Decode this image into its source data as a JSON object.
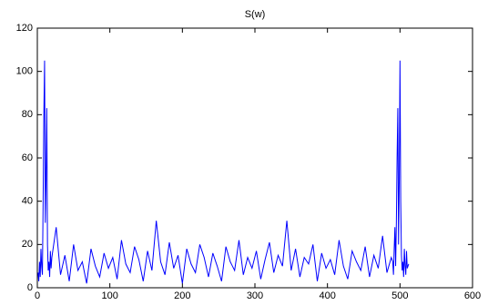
{
  "chart_data": {
    "type": "line",
    "title": "S(w)",
    "x": [
      1,
      2,
      3,
      4,
      5,
      6,
      7,
      8,
      9,
      10,
      11,
      12,
      13,
      14,
      15,
      16,
      17,
      18,
      19,
      20,
      26,
      32,
      38,
      44,
      50,
      56,
      62,
      68,
      74,
      80,
      86,
      92,
      98,
      104,
      110,
      116,
      122,
      128,
      134,
      140,
      146,
      152,
      158,
      164,
      170,
      176,
      182,
      188,
      194,
      200,
      206,
      212,
      218,
      224,
      230,
      236,
      242,
      248,
      254,
      260,
      266,
      272,
      278,
      284,
      290,
      296,
      302,
      308,
      314,
      320,
      326,
      332,
      338,
      344,
      350,
      356,
      362,
      368,
      374,
      380,
      386,
      392,
      398,
      404,
      410,
      416,
      422,
      428,
      434,
      440,
      446,
      452,
      458,
      464,
      470,
      476,
      482,
      488,
      490,
      491,
      492,
      493,
      494,
      495,
      496,
      497,
      498,
      499,
      500,
      501,
      502,
      503,
      504,
      505,
      506,
      507,
      508,
      509,
      510,
      511,
      512
    ],
    "series": [
      {
        "name": "S(w)",
        "color": "#0000ff",
        "values": [
          7,
          3,
          12,
          5,
          18,
          10,
          6,
          40,
          80,
          105,
          30,
          50,
          83,
          20,
          8,
          12,
          5,
          17,
          9,
          14,
          28,
          6,
          15,
          3,
          20,
          8,
          12,
          2,
          18,
          10,
          5,
          16,
          9,
          14,
          4,
          22,
          11,
          7,
          19,
          13,
          3,
          17,
          8,
          31,
          12,
          6,
          21,
          9,
          15,
          2,
          18,
          11,
          7,
          20,
          14,
          5,
          16,
          10,
          3,
          19,
          12,
          8,
          22,
          6,
          14,
          9,
          17,
          4,
          13,
          21,
          7,
          15,
          10,
          31,
          8,
          18,
          5,
          14,
          11,
          20,
          3,
          16,
          9,
          13,
          6,
          22,
          10,
          4,
          17,
          12,
          8,
          19,
          5,
          15,
          9,
          24,
          7,
          14,
          12,
          6,
          18,
          28,
          10,
          30,
          60,
          83,
          20,
          50,
          105,
          40,
          15,
          8,
          12,
          5,
          18,
          10,
          6,
          17,
          9,
          10,
          11
        ]
      }
    ],
    "xlim": [
      0,
      600
    ],
    "xticks": [
      0,
      100,
      200,
      300,
      400,
      500,
      600
    ],
    "ylim": [
      0,
      120
    ],
    "yticks": [
      0,
      20,
      40,
      60,
      80,
      100,
      120
    ]
  }
}
